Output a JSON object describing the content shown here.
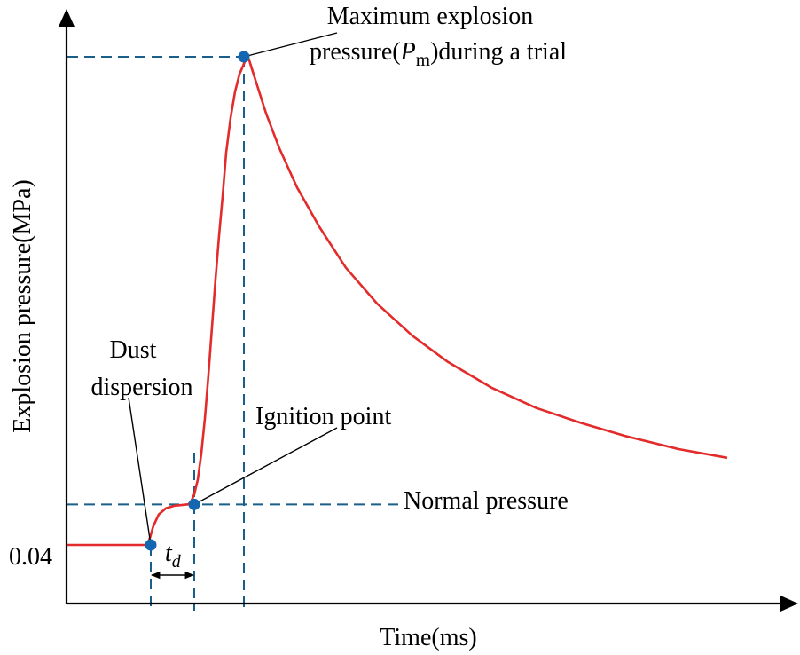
{
  "chart_data": {
    "type": "line",
    "xlabel": "Time(ms)",
    "ylabel": "Explosion pressure(MPa)",
    "y_ticks": [
      "0.04"
    ],
    "colors": {
      "curve": "#e32b2b",
      "marker": "#1566b0",
      "guide": "#1a5e8a",
      "axis": "#000000"
    },
    "series": [
      {
        "x": [
          0,
          90,
          91,
          94,
          98,
          104,
          112,
          122,
          132,
          137,
          140,
          144,
          148,
          152,
          156,
          160,
          164,
          168,
          172,
          176,
          180,
          185,
          190,
          195,
          200,
          203,
          206,
          210,
          215,
          225,
          240,
          260,
          285,
          315,
          350,
          390,
          430,
          480,
          530,
          580,
          630,
          690,
          745
        ],
        "y": [
          0.04,
          0.04,
          0.0405,
          0.048,
          0.062,
          0.075,
          0.082,
          0.085,
          0.086,
          0.0865,
          0.089,
          0.098,
          0.115,
          0.145,
          0.185,
          0.235,
          0.29,
          0.345,
          0.395,
          0.44,
          0.49,
          0.53,
          0.56,
          0.58,
          0.592,
          0.6,
          0.596,
          0.583,
          0.567,
          0.535,
          0.495,
          0.45,
          0.405,
          0.358,
          0.317,
          0.28,
          0.25,
          0.22,
          0.197,
          0.18,
          0.165,
          0.15,
          0.14
        ]
      }
    ],
    "markers": [
      {
        "name": "dust-dispersion",
        "x": 95,
        "y": 0.04
      },
      {
        "name": "ignition-point",
        "x": 144,
        "y": 0.0865
      },
      {
        "name": "maximum-pressure",
        "x": 200,
        "y": 0.6
      }
    ],
    "guides": {
      "normal_pressure_y": 0.0865,
      "max_pressure_y": 0.6,
      "dispersion_x": 95,
      "ignition_x": 144,
      "max_x": 200
    },
    "annotations": {
      "max_line1": "Maximum explosion",
      "max_line2_pre": "pressure(",
      "max_symbol": "P",
      "max_subscript": "m",
      "max_line2_post": ")during a trial",
      "dust_line1": "Dust",
      "dust_line2": "dispersion",
      "ignition": "Ignition point",
      "normal": "Normal pressure",
      "td_main": "t",
      "td_sub": "d"
    }
  }
}
